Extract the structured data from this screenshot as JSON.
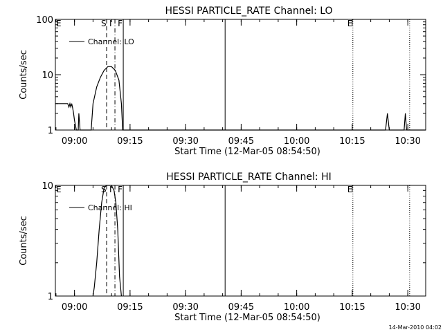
{
  "footer_timestamp": "14-Mar-2010 04:02",
  "chart_data": [
    {
      "type": "line",
      "title": "HESSI PARTICLE_RATE Channel: LO",
      "xlabel": "Start Time (12-Mar-05 08:54:50)",
      "ylabel": "Counts/sec",
      "yscale": "log",
      "ylim": [
        1,
        100
      ],
      "yticks": [
        1,
        10,
        100
      ],
      "ytick_labels": [
        "1",
        "10",
        "100"
      ],
      "xlim": [
        "08:54:50",
        "10:34:50"
      ],
      "xticks": [
        "09:00",
        "09:15",
        "09:30",
        "09:45",
        "10:00",
        "10:15",
        "10:30"
      ],
      "legend": {
        "position": "top-left",
        "entries": [
          "Channel: LO"
        ]
      },
      "series": [
        {
          "name": "Channel: LO",
          "color": "#000000",
          "x": [
            "08:54:50",
            "08:58:10",
            "08:58:30",
            "08:58:45",
            "08:59:00",
            "08:59:15",
            "08:59:30",
            "08:59:45",
            "09:00:00",
            "09:00:30",
            "09:01:00",
            "09:01:10",
            "09:01:30",
            "09:01:45",
            "09:02:00",
            "09:02:40",
            "09:03:00",
            "09:04:30",
            "09:05:00",
            "09:06:00",
            "09:07:00",
            "09:08:00",
            "09:09:00",
            "09:10:00",
            "09:11:00",
            "09:12:00",
            "09:12:40",
            "09:13:00",
            "09:13:30",
            "09:14:00",
            "10:24:00",
            "10:24:30",
            "10:25:00",
            "10:29:00",
            "10:29:20",
            "10:29:40",
            "10:34:50"
          ],
          "y": [
            3,
            3,
            2.6,
            3,
            2.6,
            3,
            2.5,
            2,
            1.5,
            1,
            1,
            2,
            1,
            1,
            1,
            1,
            1,
            1,
            3,
            6,
            9,
            12,
            14,
            14,
            12,
            8,
            3,
            1,
            1,
            1,
            1,
            2,
            1,
            1,
            2,
            1,
            1
          ]
        }
      ],
      "markers": [
        {
          "label": "E",
          "time": "08:54:50",
          "style": "none"
        },
        {
          "label": "S",
          "time": "09:08:40",
          "style": "dashed"
        },
        {
          "label": "I",
          "time": "09:10:55",
          "style": "dashdot"
        },
        {
          "label": "F",
          "time": "09:13:10",
          "style": "solid"
        },
        {
          "label": "",
          "time": "09:40:40",
          "style": "solid"
        },
        {
          "label": "E",
          "time": "10:15:10",
          "style": "dotted"
        },
        {
          "label": "",
          "time": "10:30:30",
          "style": "dotted"
        }
      ]
    },
    {
      "type": "line",
      "title": "HESSI PARTICLE_RATE Channel: HI",
      "xlabel": "Start Time (12-Mar-05 08:54:50)",
      "ylabel": "Counts/sec",
      "yscale": "log",
      "ylim": [
        1,
        10
      ],
      "yticks": [
        1,
        10
      ],
      "ytick_labels": [
        "1",
        "10"
      ],
      "xlim": [
        "08:54:50",
        "10:34:50"
      ],
      "xticks": [
        "09:00",
        "09:15",
        "09:30",
        "09:45",
        "10:00",
        "10:15",
        "10:30"
      ],
      "legend": {
        "position": "top-left",
        "entries": [
          "Channel: HI"
        ]
      },
      "series": [
        {
          "name": "Channel: HI",
          "color": "#000000",
          "x": [
            "09:05:00",
            "09:05:20",
            "09:06:00",
            "09:06:40",
            "09:07:20",
            "09:08:00",
            "09:08:40",
            "09:09:20",
            "09:10:00",
            "09:10:40",
            "09:11:10",
            "09:11:40",
            "09:12:10",
            "09:12:40"
          ],
          "y": [
            1,
            1.2,
            2,
            4,
            7,
            9.5,
            10,
            10,
            10,
            9,
            7,
            4,
            1.5,
            1
          ]
        }
      ],
      "markers": [
        {
          "label": "E",
          "time": "08:54:50",
          "style": "none"
        },
        {
          "label": "S",
          "time": "09:08:40",
          "style": "dashed"
        },
        {
          "label": "I",
          "time": "09:10:55",
          "style": "dashdot"
        },
        {
          "label": "F",
          "time": "09:13:10",
          "style": "solid"
        },
        {
          "label": "",
          "time": "09:40:40",
          "style": "solid"
        },
        {
          "label": "E",
          "time": "10:15:10",
          "style": "dotted"
        },
        {
          "label": "",
          "time": "10:30:30",
          "style": "dotted"
        }
      ]
    }
  ]
}
